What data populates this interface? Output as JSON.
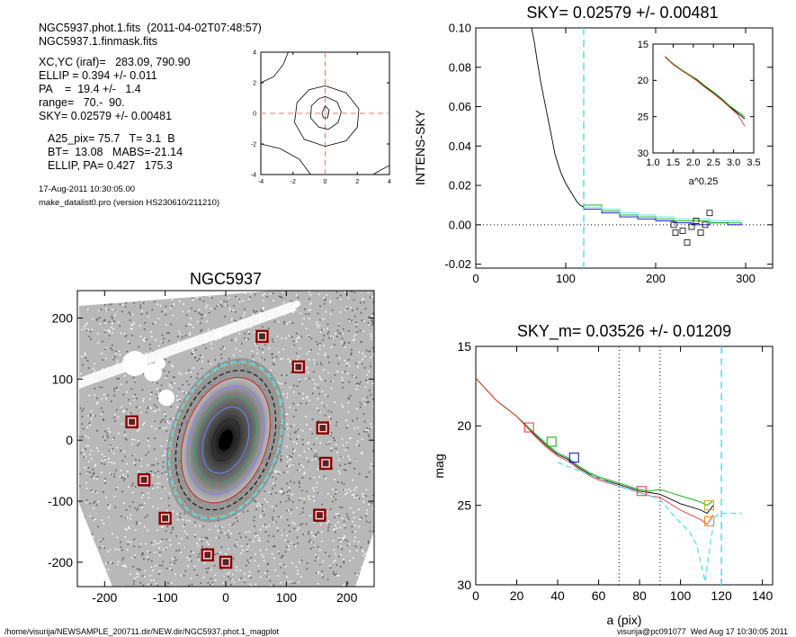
{
  "header": {
    "line1": "NGC5937.phot.1.fits  (2011-04-02T07:48:57)",
    "line2": "NGC5937.1.finmask.fits",
    "line3": "XC,YC (iraf)=   283.09, 790.90",
    "line4": "ELLIP = 0.394 +/- 0.011",
    "line5": "PA    =  19.4 +/-   1.4",
    "line6": "range=   70.-  90.",
    "line7": "SKY= 0.02579 +/- 0.00481",
    "line8": "A25_pix= 75.7   T= 3.1  B",
    "line9": "BT=  13.08   MABS=-21.14",
    "line10": "ELLIP, PA= 0.427   175.3",
    "date": "17-Aug-2011 10:30:05.00",
    "program": "make_datalist0.pro (version HS230610/211210)"
  },
  "footer": {
    "path": "/home/visurija/NEWSAMPLE_200711.dir/NEW.dir/NGC5937.phot.1_magplot",
    "user": "visurija@pc091077  Wed Aug 17 10:30:05 2011"
  },
  "chart_data": [
    {
      "id": "center_contours",
      "type": "line",
      "title": "",
      "xlim": [
        -4,
        4
      ],
      "ylim": [
        -4,
        4
      ],
      "xticks": [
        "-4",
        "-2",
        "0",
        "2",
        "4"
      ],
      "yticks": [
        "-4",
        "-2",
        "0",
        "2",
        "4"
      ],
      "contours": [
        [
          [
            0.0,
            0.5
          ],
          [
            0.25,
            0.2
          ],
          [
            0.15,
            -0.3
          ],
          [
            -0.1,
            -0.3
          ],
          [
            -0.2,
            0.0
          ],
          [
            0.0,
            0.5
          ]
        ],
        [
          [
            0,
            1.1
          ],
          [
            0.75,
            0.75
          ],
          [
            1.0,
            0.1
          ],
          [
            0.8,
            -0.6
          ],
          [
            0.2,
            -1.05
          ],
          [
            -0.4,
            -0.9
          ],
          [
            -0.9,
            -0.3
          ],
          [
            -0.85,
            0.5
          ],
          [
            -0.4,
            0.95
          ],
          [
            0,
            1.1
          ]
        ],
        [
          [
            0,
            1.8
          ],
          [
            1.3,
            1.35
          ],
          [
            2.1,
            0.3
          ],
          [
            2.0,
            -0.9
          ],
          [
            1.3,
            -1.8
          ],
          [
            0,
            -2.15
          ],
          [
            -1.3,
            -1.7
          ],
          [
            -1.9,
            -0.6
          ],
          [
            -1.75,
            0.7
          ],
          [
            -1.0,
            1.55
          ],
          [
            0,
            1.8
          ]
        ],
        [
          [
            -4,
            -2.0
          ],
          [
            -2.8,
            -2.3
          ],
          [
            -1.6,
            -3.0
          ],
          [
            -0.9,
            -4.0
          ]
        ],
        [
          [
            -2.3,
            4
          ],
          [
            -2.6,
            3.2
          ],
          [
            -3.2,
            2.4
          ],
          [
            -4,
            2.0
          ]
        ],
        [
          [
            4,
            -3.4
          ],
          [
            3.3,
            -3.8
          ],
          [
            3.0,
            -4.0
          ]
        ]
      ]
    },
    {
      "id": "sky_profile",
      "type": "line",
      "title": "SKY= 0.02579 +/- 0.00481",
      "ylabel": "INTENS-SKY",
      "xlim": [
        0,
        330
      ],
      "ylim": [
        -0.022,
        0.1
      ],
      "xticks": [
        "0",
        "100",
        "200",
        "300"
      ],
      "yticks": [
        "-0.02",
        "0.00",
        "0.02",
        "0.04",
        "0.06",
        "0.08",
        "0.10"
      ],
      "series": [
        {
          "color": "#000000",
          "x": [
            62,
            65,
            68,
            72,
            75,
            78,
            82,
            85,
            88,
            92,
            95,
            98,
            100,
            104,
            108,
            112,
            116,
            120
          ],
          "y": [
            0.1,
            0.093,
            0.084,
            0.073,
            0.066,
            0.059,
            0.05,
            0.043,
            0.036,
            0.03,
            0.026,
            0.023,
            0.021,
            0.018,
            0.015,
            0.012,
            0.01,
            0.009
          ]
        },
        {
          "color": "#0000cc",
          "x": [
            120,
            140,
            160,
            180,
            200,
            220,
            240,
            260,
            280,
            295
          ],
          "y": [
            0.008,
            0.006,
            0.004,
            0.003,
            0.002,
            0.001,
            0.0,
            0.001,
            0.0,
            0.001
          ]
        },
        {
          "color": "#00aa00",
          "x": [
            120,
            140,
            160,
            180,
            200,
            220,
            240,
            260,
            280,
            295
          ],
          "y": [
            0.01,
            0.007,
            0.005,
            0.004,
            0.003,
            0.002,
            0.002,
            0.001,
            0.001,
            0.001
          ]
        },
        {
          "color": "#55ddee",
          "x": [
            120,
            140,
            160,
            180,
            200,
            220,
            240,
            260,
            280,
            295
          ],
          "y": [
            0.009,
            0.008,
            0.006,
            0.005,
            0.004,
            0.003,
            0.003,
            0.002,
            0.002,
            0.002
          ]
        }
      ],
      "boxes": [
        [
          220,
          0.0
        ],
        [
          230,
          -0.003
        ],
        [
          240,
          -0.001
        ],
        [
          245,
          0.002
        ],
        [
          250,
          -0.004
        ],
        [
          235,
          -0.009
        ],
        [
          260,
          0.006
        ],
        [
          255,
          0.0
        ],
        [
          222,
          -0.004
        ]
      ],
      "vline_x": 120,
      "inset": {
        "xlabel": "a^0.25",
        "xlim": [
          1.0,
          3.5
        ],
        "ylim": [
          30,
          15
        ],
        "xticks": [
          "1.0",
          "1.5",
          "2.0",
          "2.5",
          "3.0",
          "3.5"
        ],
        "yticks": [
          "15",
          "20",
          "25",
          "30"
        ],
        "series": [
          {
            "color": "#000000",
            "x": [
              1.3,
              1.5,
              1.7,
              1.9,
              2.1,
              2.3,
              2.5,
              2.7,
              2.9,
              3.1,
              3.28
            ],
            "y": [
              16.7,
              17.8,
              18.6,
              19.3,
              20.0,
              20.9,
              21.7,
              22.6,
              23.6,
              24.5,
              25.3
            ]
          },
          {
            "color": "#00aa00",
            "x": [
              1.3,
              1.5,
              1.7,
              1.9,
              2.1,
              2.3,
              2.5,
              2.7,
              2.9,
              3.1,
              3.28
            ],
            "y": [
              16.7,
              17.7,
              18.5,
              19.2,
              19.9,
              20.8,
              21.6,
              22.5,
              23.5,
              24.3,
              25.0
            ]
          },
          {
            "color": "#ee3333",
            "x": [
              1.3,
              1.5,
              1.7,
              1.9,
              2.1,
              2.3,
              2.5,
              2.7,
              2.9,
              3.1,
              3.28
            ],
            "y": [
              16.8,
              17.8,
              18.6,
              19.3,
              20.1,
              21.0,
              21.8,
              22.7,
              23.7,
              24.7,
              26.3
            ]
          }
        ]
      }
    },
    {
      "id": "image_map",
      "type": "scatter",
      "title": "NGC5937",
      "xlim": [
        -245,
        245
      ],
      "ylim": [
        -240,
        245
      ],
      "xticks": [
        "-200",
        "-100",
        "0",
        "100",
        "200"
      ],
      "yticks": [
        "-200",
        "-100",
        "0",
        "100",
        "200"
      ],
      "marked_sources": [
        [
          60,
          170
        ],
        [
          120,
          120
        ],
        [
          -155,
          30
        ],
        [
          160,
          20
        ],
        [
          165,
          -38
        ],
        [
          -135,
          -65
        ],
        [
          -100,
          -128
        ],
        [
          155,
          -123
        ],
        [
          -30,
          -188
        ],
        [
          0,
          -200
        ]
      ]
    },
    {
      "id": "mag_profile",
      "type": "line",
      "title": "SKY_m=  0.03526 +/- 0.01209",
      "xlabel": "a (pix)",
      "ylabel": "mag",
      "xlim": [
        0,
        145
      ],
      "ylim": [
        30,
        15
      ],
      "xticks": [
        "0",
        "20",
        "40",
        "60",
        "80",
        "100",
        "120",
        "140"
      ],
      "yticks": [
        "15",
        "20",
        "25",
        "30"
      ],
      "vlines": [
        70,
        90
      ],
      "dashed_vline": 120,
      "series": [
        {
          "color": "#000000",
          "x": [
            0,
            5,
            10,
            15,
            20,
            25,
            30,
            35,
            40,
            45,
            50,
            55,
            60,
            65,
            70,
            75,
            80,
            85,
            90,
            95,
            100,
            105,
            110,
            113,
            116
          ],
          "y": [
            17.0,
            17.7,
            18.4,
            18.9,
            19.4,
            20.1,
            20.7,
            21.3,
            21.8,
            22.1,
            22.6,
            23.0,
            23.3,
            23.5,
            23.7,
            23.9,
            24.1,
            24.2,
            24.3,
            24.6,
            24.9,
            25.1,
            25.3,
            25.5,
            25.0
          ]
        },
        {
          "color": "#00aa00",
          "x": [
            0,
            5,
            10,
            15,
            20,
            25,
            30,
            35,
            40,
            45,
            50,
            55,
            60,
            65,
            70,
            75,
            80,
            85,
            90,
            95,
            100,
            105,
            110,
            113,
            116
          ],
          "y": [
            17.0,
            17.7,
            18.4,
            18.9,
            19.4,
            20.0,
            20.6,
            21.2,
            21.7,
            22.0,
            22.5,
            22.9,
            23.2,
            23.4,
            23.6,
            23.8,
            24.0,
            24.1,
            24.0,
            24.2,
            24.4,
            24.6,
            24.8,
            25.0,
            24.7
          ]
        },
        {
          "color": "#ee3333",
          "x": [
            0,
            5,
            10,
            15,
            20,
            25,
            30,
            35,
            40,
            45,
            50,
            55,
            60,
            65,
            70,
            75,
            80,
            85,
            90,
            95,
            100,
            105,
            110,
            113,
            116
          ],
          "y": [
            17.0,
            17.7,
            18.4,
            18.9,
            19.4,
            20.1,
            20.8,
            21.4,
            21.9,
            22.2,
            22.7,
            23.1,
            23.4,
            23.6,
            23.8,
            24.0,
            24.2,
            24.4,
            24.5,
            24.9,
            25.3,
            25.6,
            25.9,
            26.2,
            25.6
          ]
        },
        {
          "color": "#55ddee",
          "x": [
            40,
            50,
            60,
            70,
            80,
            90,
            95,
            100,
            104,
            108,
            112,
            115,
            117,
            120,
            125,
            130
          ],
          "y": [
            22.3,
            22.8,
            23.3,
            23.8,
            24.2,
            24.6,
            25.4,
            26.1,
            26.6,
            27.5,
            29.8,
            27.0,
            25.7,
            25.5,
            25.5,
            25.5
          ],
          "dashed": true
        }
      ],
      "markers": [
        {
          "x": 26,
          "y": 20.1,
          "color": "#ee3333"
        },
        {
          "x": 37,
          "y": 21.0,
          "color": "#00aa00"
        },
        {
          "x": 48,
          "y": 22.0,
          "color": "#0000cc"
        },
        {
          "x": 81,
          "y": 24.1,
          "color": "#ee3333"
        },
        {
          "x": 114,
          "y": 25.0,
          "color": "#ccaa00"
        },
        {
          "x": 114,
          "y": 26.0,
          "color": "#ee8800"
        }
      ]
    }
  ]
}
